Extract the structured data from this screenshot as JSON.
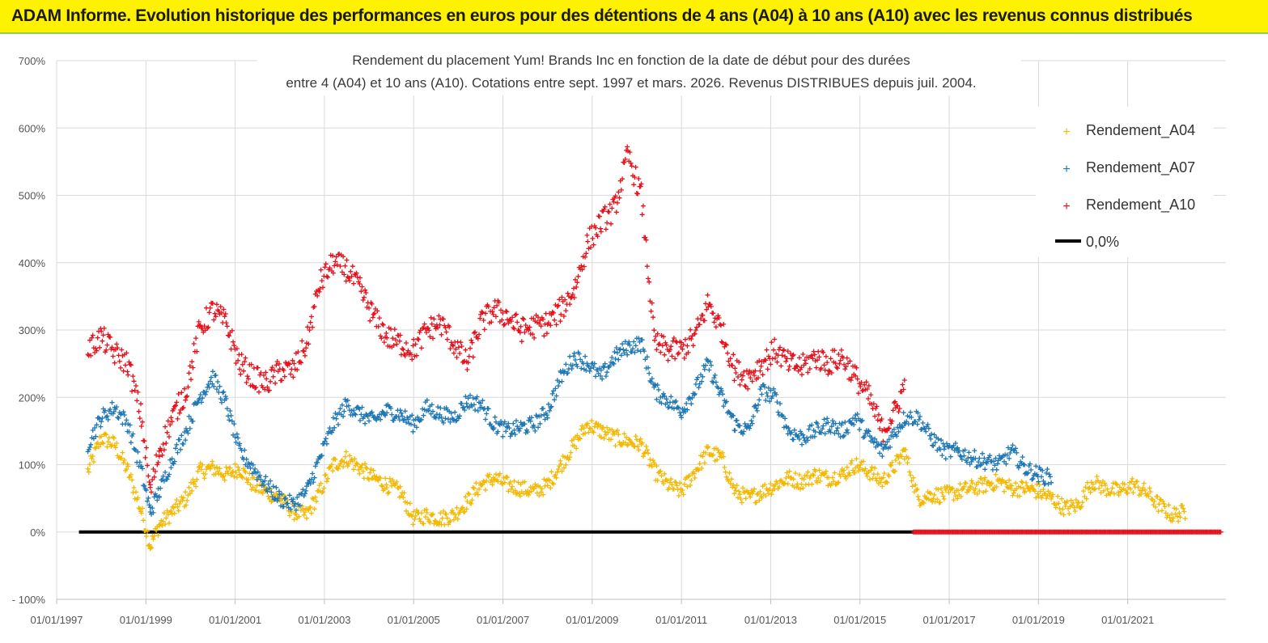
{
  "header": {
    "title": "ADAM Informe. Evolution historique des performances en euros pour des détentions de 4 ans (A04) à 10 ans (A10) avec les revenus connus distribués"
  },
  "colors": {
    "header_bg": "#fff200",
    "header_border": "#8fd14f",
    "grid": "#d9d9d9",
    "a04": "#f5b800",
    "a07": "#1f77b4",
    "a10": "#e8101a",
    "zero": "#000000"
  },
  "chart_data": {
    "type": "scatter",
    "title_line1": "Rendement du placement Yum! Brands Inc en fonction de la date de début pour des durées",
    "title_line2": "entre 4 (A04) et 10 ans (A10). Cotations entre sept. 1997 et mars. 2026. Revenus DISTRIBUES depuis juil. 2004.",
    "xlabel": "",
    "ylabel": "",
    "x_range": [
      1997.0,
      2023.2
    ],
    "ylim": [
      -100,
      700
    ],
    "y_ticks": [
      -100,
      0,
      100,
      200,
      300,
      400,
      500,
      600,
      700
    ],
    "y_tick_labels": [
      "- 100%",
      "0%",
      "100%",
      "200%",
      "300%",
      "400%",
      "500%",
      "600%",
      "700%"
    ],
    "x_ticks": [
      1997,
      1999,
      2001,
      2003,
      2005,
      2007,
      2009,
      2011,
      2013,
      2015,
      2017,
      2019,
      2021
    ],
    "x_tick_labels": [
      "01/01/1997",
      "01/01/1999",
      "01/01/2001",
      "01/01/2003",
      "01/01/2005",
      "01/01/2007",
      "01/01/2009",
      "01/01/2011",
      "01/01/2013",
      "01/01/2015",
      "01/01/2017",
      "01/01/2019",
      "01/01/2021"
    ],
    "grid": true,
    "legend_position": "top-right",
    "series": [
      {
        "name": "Rendement_A04",
        "marker": "+",
        "x": [
          1997.7,
          1998.0,
          1998.3,
          1998.6,
          1998.9,
          1999.1,
          1999.3,
          1999.6,
          1999.9,
          2000.2,
          2000.5,
          2000.8,
          2001.1,
          2001.4,
          2001.7,
          2002.0,
          2002.3,
          2002.6,
          2002.9,
          2003.2,
          2003.5,
          2003.8,
          2004.1,
          2004.4,
          2004.7,
          2005.0,
          2005.3,
          2005.6,
          2005.9,
          2006.2,
          2006.5,
          2006.8,
          2007.1,
          2007.4,
          2007.7,
          2008.0,
          2008.3,
          2008.6,
          2008.9,
          2009.2,
          2009.5,
          2009.8,
          2010.1,
          2010.4,
          2010.7,
          2011.0,
          2011.3,
          2011.6,
          2011.9,
          2012.2,
          2012.5,
          2012.8,
          2013.1,
          2013.4,
          2013.7,
          2014.0,
          2014.3,
          2014.6,
          2014.9,
          2015.2,
          2015.5,
          2015.8,
          2016.0,
          2016.3,
          2016.6,
          2016.9,
          2017.2,
          2017.5,
          2017.8,
          2018.1,
          2018.4,
          2018.7,
          2019.0,
          2019.3,
          2019.6,
          2019.9,
          2020.2,
          2020.5,
          2020.8,
          2021.1,
          2021.4,
          2021.7,
          2022.0,
          2022.3
        ],
        "values": [
          90,
          140,
          130,
          90,
          30,
          -20,
          10,
          30,
          50,
          90,
          95,
          85,
          95,
          70,
          60,
          50,
          30,
          25,
          60,
          100,
          110,
          95,
          80,
          70,
          60,
          20,
          25,
          20,
          25,
          45,
          70,
          80,
          70,
          65,
          60,
          70,
          100,
          130,
          160,
          150,
          140,
          135,
          130,
          90,
          70,
          60,
          90,
          120,
          110,
          60,
          50,
          60,
          70,
          80,
          75,
          85,
          80,
          85,
          100,
          90,
          75,
          100,
          120,
          50,
          55,
          55,
          60,
          65,
          70,
          75,
          65,
          65,
          60,
          50,
          35,
          40,
          75,
          65,
          60,
          70,
          60,
          40,
          25,
          30
        ]
      },
      {
        "name": "Rendement_A07",
        "marker": "+",
        "x": [
          1997.7,
          1998.0,
          1998.3,
          1998.6,
          1998.9,
          1999.1,
          1999.3,
          1999.6,
          1999.9,
          2000.2,
          2000.5,
          2000.8,
          2001.1,
          2001.4,
          2001.7,
          2002.0,
          2002.3,
          2002.6,
          2002.9,
          2003.2,
          2003.5,
          2003.8,
          2004.1,
          2004.4,
          2004.7,
          2005.0,
          2005.3,
          2005.6,
          2005.9,
          2006.2,
          2006.5,
          2006.8,
          2007.1,
          2007.4,
          2007.7,
          2008.0,
          2008.3,
          2008.6,
          2008.9,
          2009.2,
          2009.5,
          2009.8,
          2010.1,
          2010.4,
          2010.7,
          2011.0,
          2011.3,
          2011.6,
          2011.9,
          2012.2,
          2012.5,
          2012.8,
          2013.1,
          2013.4,
          2013.7,
          2014.0,
          2014.3,
          2014.6,
          2014.9,
          2015.2,
          2015.5,
          2015.8,
          2016.0,
          2016.3,
          2016.6,
          2016.9,
          2017.2,
          2017.5,
          2017.8,
          2018.1,
          2018.4,
          2018.7,
          2019.0,
          2019.3
        ],
        "values": [
          130,
          170,
          185,
          160,
          90,
          30,
          60,
          110,
          150,
          200,
          230,
          190,
          120,
          95,
          70,
          50,
          40,
          60,
          110,
          160,
          190,
          175,
          165,
          180,
          175,
          160,
          185,
          175,
          170,
          195,
          190,
          160,
          150,
          155,
          160,
          180,
          230,
          260,
          250,
          230,
          260,
          275,
          280,
          210,
          195,
          180,
          210,
          250,
          200,
          160,
          150,
          210,
          200,
          150,
          140,
          150,
          160,
          150,
          170,
          140,
          120,
          150,
          170,
          170,
          140,
          120,
          120,
          110,
          105,
          100,
          120,
          95,
          85,
          80
        ]
      },
      {
        "name": "Rendement_A10",
        "marker": "+",
        "x": [
          1997.7,
          1998.0,
          1998.3,
          1998.6,
          1998.9,
          1999.1,
          1999.3,
          1999.6,
          1999.9,
          2000.2,
          2000.5,
          2000.8,
          2001.1,
          2001.4,
          2001.7,
          2002.0,
          2002.3,
          2002.6,
          2002.9,
          2003.2,
          2003.5,
          2003.8,
          2004.1,
          2004.4,
          2004.7,
          2005.0,
          2005.3,
          2005.6,
          2005.9,
          2006.2,
          2006.5,
          2006.8,
          2007.1,
          2007.4,
          2007.7,
          2008.0,
          2008.3,
          2008.6,
          2008.9,
          2009.2,
          2009.5,
          2009.8,
          2010.1,
          2010.4,
          2010.7,
          2011.0,
          2011.3,
          2011.6,
          2011.9,
          2012.2,
          2012.5,
          2012.8,
          2013.1,
          2013.4,
          2013.7,
          2014.0,
          2014.3,
          2014.6,
          2014.9,
          2015.2,
          2015.5,
          2015.8,
          2016.0
        ],
        "values": [
          270,
          290,
          265,
          250,
          170,
          60,
          120,
          170,
          210,
          300,
          330,
          310,
          250,
          230,
          220,
          240,
          240,
          280,
          370,
          400,
          390,
          360,
          320,
          290,
          280,
          270,
          300,
          310,
          280,
          250,
          310,
          330,
          320,
          300,
          305,
          310,
          330,
          360,
          430,
          460,
          480,
          560,
          500,
          280,
          270,
          270,
          290,
          340,
          300,
          240,
          230,
          250,
          270,
          250,
          245,
          260,
          250,
          260,
          230,
          200,
          150,
          180,
          220
        ],
        "zero_from": 2016.2,
        "zero_to": 2023.1
      },
      {
        "name": "0,0%",
        "marker": "line",
        "x": [
          1997.5,
          2016.2
        ],
        "values": [
          0,
          0
        ]
      }
    ]
  }
}
